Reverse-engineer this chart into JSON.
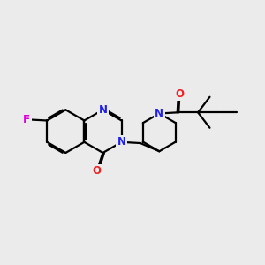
{
  "bg_color": "#ebebeb",
  "bond_color": "#000000",
  "N_color": "#2020ee",
  "O_color": "#ee2020",
  "F_color": "#dd00dd",
  "lw": 1.6,
  "dbo": 0.055,
  "figsize": [
    3.0,
    3.0
  ],
  "dpi": 100,
  "xlim": [
    -0.5,
    10.5
  ],
  "ylim": [
    1.0,
    7.5
  ]
}
